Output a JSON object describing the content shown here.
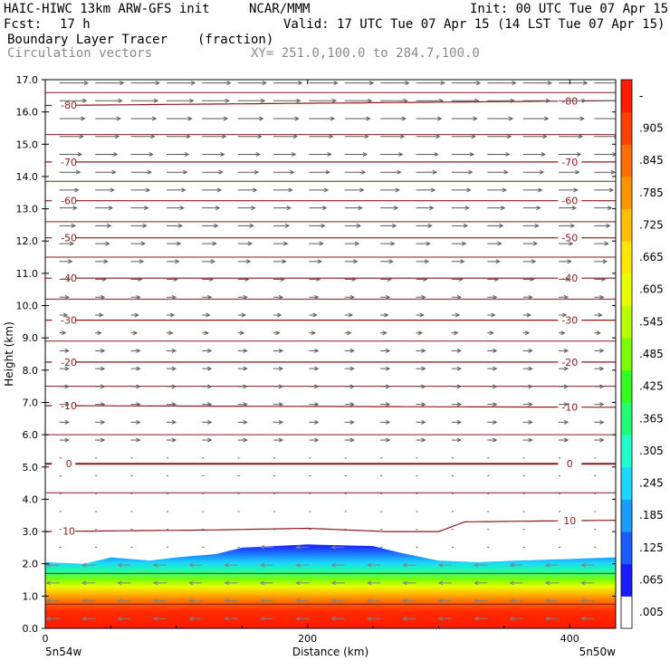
{
  "header": {
    "model": "HAIC-HIWC 13km ARW-GFS init",
    "org": "NCAR/MMM",
    "init": "Init: 00 UTC Tue 07 Apr 15",
    "fcst_label": "Fcst:",
    "fcst_value": "17 h",
    "valid": "Valid: 17 UTC Tue 07 Apr 15 (14 LST Tue 07 Apr 15)",
    "field_name": "Boundary Layer Tracer",
    "field_units": "(fraction)",
    "vectors": "Circulation vectors",
    "xy": "XY= 251.0,100.0 to 284.7,100.0"
  },
  "chart_data": {
    "type": "heatmap",
    "xlabel": "Distance (km)",
    "ylabel": "Height (km)",
    "xlim": [
      0,
      435
    ],
    "ylim": [
      0,
      17
    ],
    "xticks": [
      0,
      200,
      400
    ],
    "xtick_labels": [
      "0",
      "200",
      "400"
    ],
    "yticks": [
      0.0,
      1.0,
      2.0,
      3.0,
      4.0,
      5.0,
      6.0,
      7.0,
      8.0,
      9.0,
      10.0,
      11.0,
      12.0,
      13.0,
      14.0,
      15.0,
      16.0,
      17.0
    ],
    "ytick_labels": [
      "0.0",
      "1.0",
      "2.0",
      "3.0",
      "4.0",
      "5.0",
      "6.0",
      "7.0",
      "8.0",
      "9.0",
      "10.0",
      "11.0",
      "12.0",
      "13.0",
      "14.0",
      "15.0",
      "16.0",
      "17.0"
    ],
    "x_end_labels": {
      "left": "5n54w",
      "right": "5n50w"
    },
    "colorbar": {
      "labels": [
        ".005",
        ".065",
        ".125",
        ".185",
        ".245",
        ".305",
        ".365",
        ".425",
        ".485",
        ".545",
        ".605",
        ".665",
        ".725",
        ".785",
        ".845",
        ".905",
        "-"
      ],
      "colors": [
        "#ffffff",
        "#1a1aff",
        "#1a5cff",
        "#1a9cff",
        "#1ad8ff",
        "#22ffcc",
        "#22ff77",
        "#33ff22",
        "#7cff00",
        "#b8ff00",
        "#e6ff00",
        "#ffe600",
        "#ffbe00",
        "#ff9600",
        "#ff6e00",
        "#ff4000",
        "#ff1a00"
      ]
    },
    "tracer_top": {
      "x": [
        0,
        30,
        50,
        80,
        100,
        130,
        150,
        200,
        250,
        270,
        300,
        330,
        360,
        400,
        435
      ],
      "height_km": [
        2.05,
        2.0,
        2.2,
        2.1,
        2.2,
        2.3,
        2.5,
        2.6,
        2.55,
        2.35,
        2.1,
        2.05,
        2.1,
        2.15,
        2.2
      ]
    },
    "temperature_contours": [
      {
        "value": 10,
        "label": "10",
        "x": [
          0,
          130,
          200,
          260,
          300,
          320,
          435
        ],
        "height_km": [
          3.0,
          3.05,
          3.1,
          3.0,
          3.0,
          3.3,
          3.35
        ]
      },
      {
        "value": 0,
        "label": "0",
        "x": [
          0,
          435
        ],
        "height_km": [
          5.1,
          5.1
        ]
      },
      {
        "value": -10,
        "label": "-10",
        "x": [
          0,
          435
        ],
        "height_km": [
          6.9,
          6.85
        ]
      },
      {
        "value": -20,
        "label": "-20",
        "x": [
          0,
          435
        ],
        "height_km": [
          8.25,
          8.25
        ]
      },
      {
        "value": -30,
        "label": "-30",
        "x": [
          0,
          435
        ],
        "height_km": [
          9.55,
          9.55
        ]
      },
      {
        "value": -40,
        "label": "-40",
        "x": [
          0,
          435
        ],
        "height_km": [
          10.85,
          10.85
        ]
      },
      {
        "value": -50,
        "label": "-50",
        "x": [
          0,
          435
        ],
        "height_km": [
          12.1,
          12.1
        ]
      },
      {
        "value": -60,
        "label": "-60",
        "x": [
          0,
          435
        ],
        "height_km": [
          13.25,
          13.25
        ]
      },
      {
        "value": -70,
        "label": "-70",
        "x": [
          0,
          435
        ],
        "height_km": [
          14.45,
          14.45
        ]
      },
      {
        "value": -80,
        "label": "-80",
        "x": [
          0,
          435
        ],
        "height_km": [
          16.2,
          16.35
        ]
      }
    ],
    "unlabeled_isotherm_heights_km": [
      0.75,
      1.7,
      4.2,
      6.0,
      7.5,
      8.9,
      10.2,
      11.5,
      12.6,
      13.85,
      15.3,
      16.6
    ],
    "vectors": {
      "columns": 16,
      "rows": 31,
      "description": "westerly flow aloft, weak near-calm mid levels, easterly low-level flow in boundary layer"
    },
    "grid": false,
    "legend": "right colorbar"
  }
}
